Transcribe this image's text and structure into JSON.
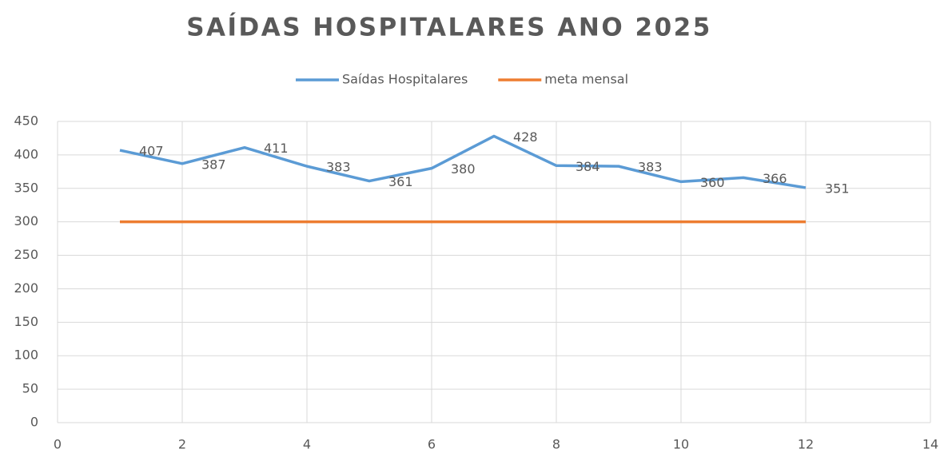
{
  "chart_data": {
    "type": "line",
    "title": "SAÍDAS HOSPITALARES ANO 2025",
    "x": [
      1,
      2,
      3,
      4,
      5,
      6,
      7,
      8,
      9,
      10,
      11,
      12
    ],
    "series": [
      {
        "name": "Saídas Hospitalares",
        "color": "#5b9bd5",
        "values": [
          407,
          387,
          411,
          383,
          361,
          380,
          428,
          384,
          383,
          360,
          366,
          351
        ],
        "data_labels": true
      },
      {
        "name": "meta mensal",
        "color": "#ed7d31",
        "values": [
          300,
          300,
          300,
          300,
          300,
          300,
          300,
          300,
          300,
          300,
          300,
          300
        ],
        "data_labels": false
      }
    ],
    "xlim": [
      0,
      14
    ],
    "xticks": [
      0,
      2,
      4,
      6,
      8,
      10,
      12,
      14
    ],
    "ylim": [
      0,
      450
    ],
    "yticks": [
      0,
      50,
      100,
      150,
      200,
      250,
      300,
      350,
      400,
      450
    ],
    "grid": true,
    "legend": "top"
  }
}
